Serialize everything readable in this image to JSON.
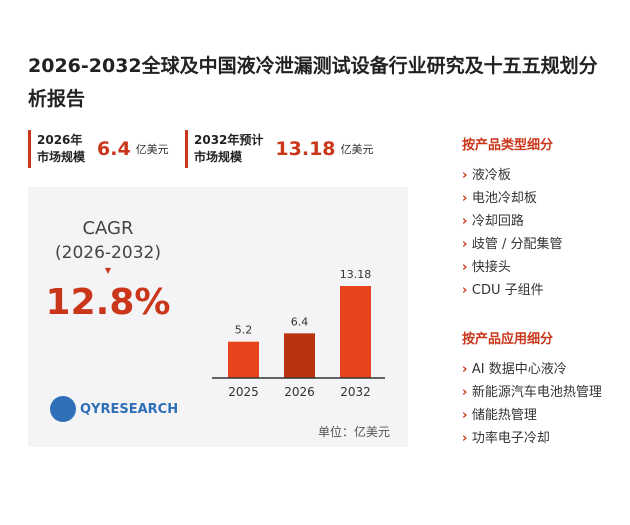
{
  "header": {
    "title": "2026-2032全球及中国液冷泄漏测试设备行业研究及十五五规划分析报告"
  },
  "stats": [
    {
      "label": [
        "2026年",
        "市场规模"
      ],
      "value": 6.4,
      "unit": "亿美元"
    },
    {
      "label": [
        "2032年预计",
        "市场规模"
      ],
      "value": 13.18,
      "unit": "亿美元"
    }
  ],
  "cagr": {
    "title": "CAGR",
    "period": "(2026-2032)",
    "value": "12.8%"
  },
  "logo": "QYRESEARCH",
  "chart_data": {
    "type": "bar",
    "categories": [
      "2025",
      "2026",
      "2032"
    ],
    "values": [
      5.2,
      6.4,
      13.18
    ],
    "colors": [
      "#e8431c",
      "#b8330e",
      "#e8431c"
    ],
    "unit_note": "单位：亿美元"
  },
  "segments": [
    {
      "heading": "按产品类型细分",
      "items": [
        "液冷板",
        "电池冷却板",
        "冷却回路",
        "歧管 / 分配集管",
        "快接头",
        "CDU 子组件"
      ]
    },
    {
      "heading": "按产品应用细分",
      "items": [
        "AI 数据中心液冷",
        "新能源汽车电池热管理",
        "储能热管理",
        "功率电子冷却"
      ]
    }
  ]
}
